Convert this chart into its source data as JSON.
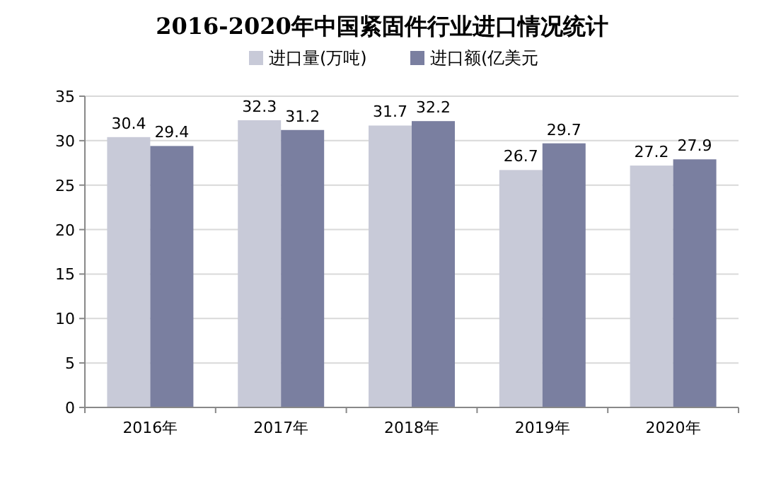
{
  "chart_data": {
    "type": "bar",
    "title": "2016-2020年中国紧固件行业进口情况统计",
    "categories": [
      "2016年",
      "2017年",
      "2018年",
      "2019年",
      "2020年"
    ],
    "series": [
      {
        "name": "进口量(万吨)",
        "color": "#c8cad8",
        "values": [
          30.4,
          32.3,
          31.7,
          26.7,
          27.2
        ]
      },
      {
        "name": "进口额(亿美元",
        "color": "#7a7fa0",
        "values": [
          29.4,
          31.2,
          32.2,
          29.7,
          27.9
        ]
      }
    ],
    "ylim": [
      0,
      35
    ],
    "yticks": [
      0,
      5,
      10,
      15,
      20,
      25,
      30,
      35
    ],
    "grid": "y",
    "legend": "top",
    "data_labels": true
  }
}
